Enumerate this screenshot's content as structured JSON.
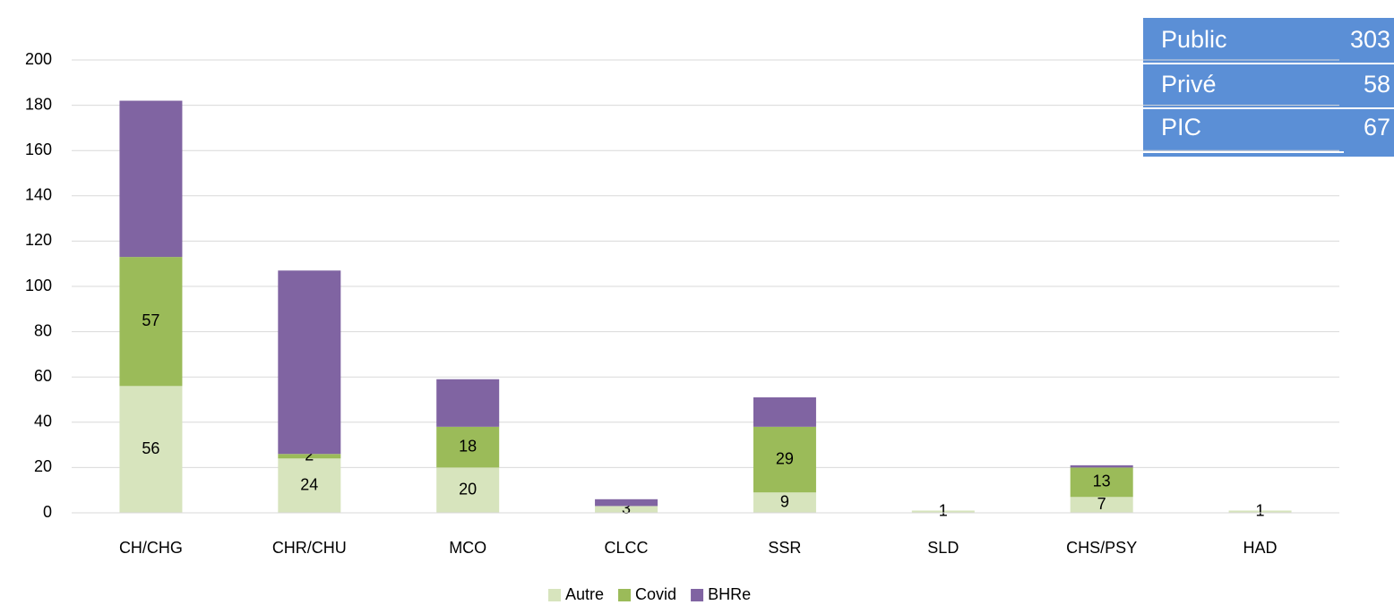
{
  "chart_data": {
    "type": "stacked_bar",
    "categories": [
      "CH/CHG",
      "CHR/CHU",
      "MCO",
      "CLCC",
      "SSR",
      "SLD",
      "CHS/PSY",
      "HAD"
    ],
    "series": [
      {
        "name": "Autre",
        "color": "#d7e4bd",
        "values": [
          56,
          24,
          20,
          3,
          9,
          1,
          7,
          1
        ],
        "data_labels": true
      },
      {
        "name": "Covid",
        "color": "#9bbb59",
        "values": [
          57,
          2,
          18,
          0,
          29,
          0,
          13,
          0
        ],
        "data_labels": true
      },
      {
        "name": "BHRe",
        "color": "#8064a2",
        "values": [
          69,
          81,
          21,
          3,
          13,
          0,
          1,
          0
        ],
        "data_labels": false
      }
    ],
    "ylim": [
      0,
      200
    ],
    "yticks": [
      0,
      20,
      40,
      60,
      80,
      100,
      120,
      140,
      160,
      180,
      200
    ],
    "grid": true,
    "legend": "bottom"
  },
  "table": {
    "rows": [
      [
        "Public",
        303
      ],
      [
        "Privé",
        58
      ],
      [
        "PIC",
        67
      ]
    ]
  }
}
